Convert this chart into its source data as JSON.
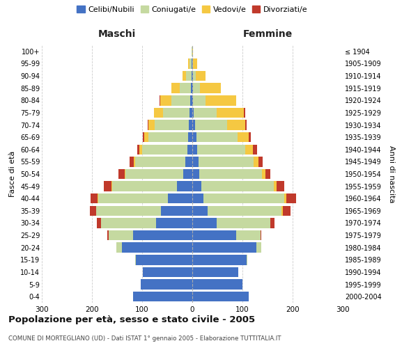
{
  "age_groups": [
    "0-4",
    "5-9",
    "10-14",
    "15-19",
    "20-24",
    "25-29",
    "30-34",
    "35-39",
    "40-44",
    "45-49",
    "50-54",
    "55-59",
    "60-64",
    "65-69",
    "70-74",
    "75-79",
    "80-84",
    "85-89",
    "90-94",
    "95-99",
    "100+"
  ],
  "birth_years": [
    "2000-2004",
    "1995-1999",
    "1990-1994",
    "1985-1989",
    "1980-1984",
    "1975-1979",
    "1970-1974",
    "1965-1969",
    "1960-1964",
    "1955-1959",
    "1950-1954",
    "1945-1949",
    "1940-1944",
    "1935-1939",
    "1930-1934",
    "1925-1929",
    "1920-1924",
    "1915-1919",
    "1910-1914",
    "1905-1909",
    "≤ 1904"
  ],
  "males": {
    "celibi": [
      118,
      103,
      98,
      112,
      140,
      118,
      72,
      62,
      48,
      30,
      18,
      14,
      10,
      8,
      7,
      6,
      4,
      3,
      2,
      1,
      0
    ],
    "coniugati": [
      0,
      0,
      0,
      2,
      12,
      48,
      110,
      130,
      140,
      130,
      115,
      100,
      90,
      80,
      68,
      52,
      38,
      22,
      10,
      4,
      1
    ],
    "vedovi": [
      0,
      0,
      0,
      0,
      0,
      0,
      0,
      0,
      1,
      1,
      2,
      3,
      5,
      8,
      12,
      18,
      22,
      16,
      8,
      3,
      1
    ],
    "divorziati": [
      0,
      0,
      0,
      0,
      0,
      3,
      8,
      12,
      14,
      16,
      12,
      8,
      5,
      3,
      2,
      1,
      1,
      0,
      0,
      0,
      0
    ]
  },
  "females": {
    "nubili": [
      112,
      100,
      92,
      108,
      128,
      88,
      48,
      30,
      22,
      18,
      14,
      12,
      10,
      8,
      5,
      3,
      2,
      1,
      1,
      0,
      0
    ],
    "coniugate": [
      0,
      0,
      0,
      2,
      10,
      48,
      108,
      148,
      162,
      145,
      125,
      110,
      96,
      82,
      65,
      45,
      25,
      14,
      6,
      2,
      0
    ],
    "vedove": [
      0,
      0,
      0,
      0,
      0,
      0,
      0,
      2,
      3,
      5,
      7,
      10,
      15,
      22,
      35,
      55,
      60,
      42,
      20,
      8,
      2
    ],
    "divorziate": [
      0,
      0,
      0,
      0,
      0,
      2,
      8,
      16,
      20,
      16,
      10,
      8,
      8,
      5,
      3,
      2,
      1,
      0,
      0,
      0,
      0
    ]
  },
  "colors": {
    "celibi_nubili": "#4472C4",
    "coniugati": "#C5D9A0",
    "vedovi": "#F5C842",
    "divorziati": "#C0392B"
  },
  "title": "Popolazione per età, sesso e stato civile - 2005",
  "subtitle": "COMUNE DI MORTEGLIANO (UD) - Dati ISTAT 1° gennaio 2005 - Elaborazione TUTTITALIA.IT",
  "ylabel_left": "Fasce di età",
  "ylabel_right": "Anni di nascita",
  "xlabel_left": "Maschi",
  "xlabel_right": "Femmine",
  "xlim": 300,
  "legend_labels": [
    "Celibi/Nubili",
    "Coniugati/e",
    "Vedovi/e",
    "Divorziati/e"
  ],
  "background_color": "#ffffff",
  "grid_color": "#cccccc"
}
